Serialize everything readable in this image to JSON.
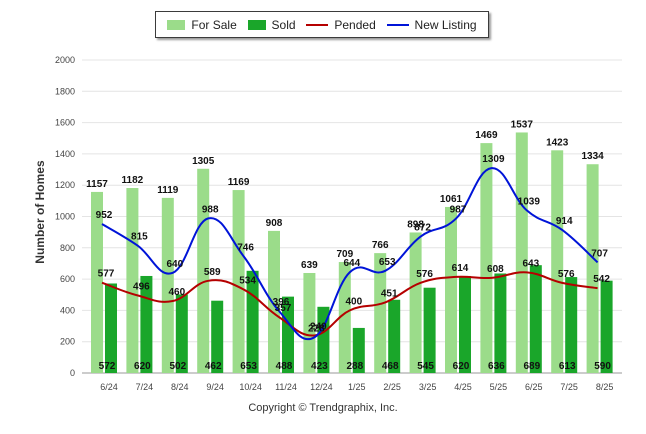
{
  "chart_data": {
    "type": "bar",
    "ylabel": "Number of Homes",
    "ylim": [
      0,
      2000
    ],
    "yticks": [
      "0",
      "200",
      "400",
      "600",
      "800",
      "1000",
      "1200",
      "1400",
      "1600",
      "1800",
      "2000"
    ],
    "categories": [
      "6/24",
      "7/24",
      "8/24",
      "9/24",
      "10/24",
      "11/24",
      "12/24",
      "1/25",
      "2/25",
      "3/25",
      "4/25",
      "5/25",
      "6/25",
      "7/25",
      "8/25"
    ],
    "series": [
      {
        "name": "For Sale",
        "kind": "bar",
        "color": "#9bdc8a",
        "values": [
          1157,
          1182,
          1119,
          1305,
          1169,
          908,
          639,
          709,
          766,
          898,
          1061,
          1469,
          1537,
          1423,
          1334
        ]
      },
      {
        "name": "Sold",
        "kind": "bar",
        "color": "#1aa62a",
        "values": [
          572,
          620,
          502,
          462,
          653,
          488,
          423,
          288,
          468,
          545,
          620,
          636,
          689,
          613,
          590
        ]
      },
      {
        "name": "Pended",
        "kind": "line",
        "color": "#b50000",
        "values": [
          577,
          496,
          460,
          589,
          534,
          357,
          240,
          400,
          451,
          576,
          614,
          608,
          643,
          576,
          542
        ]
      },
      {
        "name": "New Listing",
        "kind": "line",
        "color": "#0014d8",
        "values": [
          952,
          815,
          640,
          988,
          746,
          396,
          228,
          644,
          653,
          872,
          987,
          1309,
          1039,
          914,
          707
        ]
      }
    ],
    "data_labels": {
      "for_sale": [
        "1157",
        "1182",
        "1119",
        "1305",
        "1169",
        "908",
        "639",
        "709",
        "766",
        "898",
        "1061",
        "1469",
        "1537",
        "1423",
        "1334"
      ],
      "sold": [
        "572",
        "620",
        "502",
        "462",
        "653",
        "488",
        "423",
        "288",
        "468",
        "545",
        "620",
        "636",
        "689",
        "613",
        "590"
      ],
      "pended": [
        "577",
        "496",
        "460",
        "589",
        "534",
        "357",
        "240",
        "400",
        "451",
        "576",
        "614",
        "608",
        "643",
        "576",
        "542"
      ],
      "new_listing": [
        "952",
        "815",
        "640",
        "988",
        "746",
        "396",
        "228",
        "644",
        "653",
        "872",
        "987",
        "1309",
        "1039",
        "914",
        "707"
      ]
    },
    "grid": true,
    "legend_position": "top-center"
  },
  "legend": {
    "for_sale": "For Sale",
    "sold": "Sold",
    "pended": "Pended",
    "new_listing": "New Listing"
  },
  "colors": {
    "for_sale": "#9bdc8a",
    "sold": "#1aa62a",
    "pended": "#b50000",
    "new_listing": "#0014d8"
  },
  "footer": "Copyright © Trendgraphix, Inc."
}
